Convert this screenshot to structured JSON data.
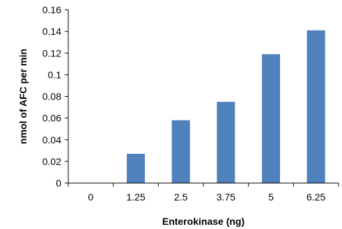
{
  "chart_data": {
    "type": "bar",
    "title": "",
    "xlabel": "Enterokinase (ng)",
    "ylabel": "nmol of AFC per min",
    "categories": [
      "0",
      "1.25",
      "2.5",
      "3.75",
      "5",
      "6.25"
    ],
    "values": [
      0,
      0.027,
      0.058,
      0.075,
      0.119,
      0.141
    ],
    "ylim": [
      0,
      0.16
    ],
    "yticks": [
      "0",
      "0.02",
      "0.04",
      "0.06",
      "0.08",
      "0.1",
      "0.12",
      "0.14",
      "0.16"
    ],
    "grid": false,
    "legend": "none",
    "bar_color": "#4f81bd",
    "axis_color": "#000000"
  }
}
